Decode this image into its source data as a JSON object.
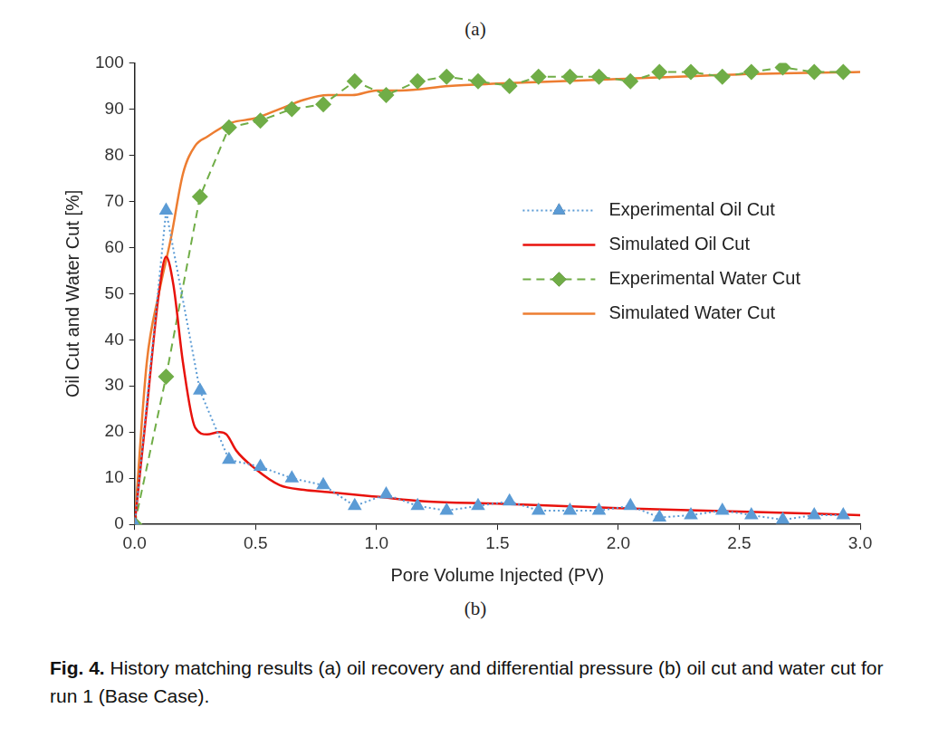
{
  "figure": {
    "panel_top": "(a)",
    "panel_bottom": "(b)",
    "caption_label": "Fig. 4.",
    "caption_text": "History matching results (a) oil recovery and differential pressure (b) oil cut and water cut for run 1 (Base Case)."
  },
  "chart_data": {
    "type": "line",
    "x_label": "Pore Volume Injected (PV)",
    "y_label": "Oil Cut and Water Cut [%]",
    "xlim": [
      0,
      3
    ],
    "xticks": [
      {
        "value": 0,
        "label": "0.0"
      },
      0.5,
      {
        "value": 1,
        "label": "1.0"
      },
      1.5,
      {
        "value": 2,
        "label": "2.0"
      },
      2.5,
      {
        "value": 3,
        "label": "3.0"
      }
    ],
    "ylim": [
      0,
      100
    ],
    "yticks": [
      0,
      10,
      20,
      30,
      40,
      50,
      60,
      70,
      80,
      90,
      100
    ],
    "grid": false,
    "legend": "right",
    "series": [
      {
        "name": "Experimental Oil Cut",
        "color": "#5b9bd5",
        "marker": "triangle",
        "line_style": "dotted",
        "x": [
          0,
          0.13,
          0.27,
          0.39,
          0.52,
          0.65,
          0.78,
          0.91,
          1.04,
          1.17,
          1.29,
          1.42,
          1.55,
          1.67,
          1.8,
          1.92,
          2.05,
          2.17,
          2.3,
          2.43,
          2.55,
          2.68,
          2.81,
          2.93
        ],
        "values": [
          0,
          68,
          29,
          14,
          12.5,
          10,
          8.5,
          4,
          6.5,
          4,
          3,
          4,
          5,
          3,
          3,
          3,
          4,
          1.5,
          2,
          3,
          2,
          1,
          2,
          2
        ]
      },
      {
        "name": "Simulated Oil Cut",
        "color": "#e8120c",
        "marker": "none",
        "line_style": "solid",
        "x": [
          0,
          0.05,
          0.1,
          0.13,
          0.16,
          0.2,
          0.25,
          0.3,
          0.35,
          0.38,
          0.42,
          0.5,
          0.6,
          0.7,
          0.8,
          1.0,
          1.2,
          1.5,
          2.0,
          2.5,
          3.0
        ],
        "values": [
          0,
          25,
          50,
          58,
          52,
          35,
          21,
          19.5,
          20,
          19.5,
          16,
          12,
          8.5,
          7.5,
          7,
          6,
          5,
          4.5,
          3.5,
          2.8,
          2
        ]
      },
      {
        "name": "Experimental Water Cut",
        "color": "#70ad47",
        "marker": "diamond",
        "line_style": "dashed",
        "x": [
          0,
          0.13,
          0.27,
          0.39,
          0.52,
          0.65,
          0.78,
          0.91,
          1.04,
          1.17,
          1.29,
          1.42,
          1.55,
          1.67,
          1.8,
          1.92,
          2.05,
          2.17,
          2.3,
          2.43,
          2.55,
          2.68,
          2.81,
          2.93
        ],
        "values": [
          0,
          32,
          71,
          86,
          87.5,
          90,
          91,
          96,
          93,
          96,
          97,
          96,
          95,
          97,
          97,
          97,
          96,
          98,
          98,
          97,
          98,
          99,
          98,
          98
        ]
      },
      {
        "name": "Simulated Water Cut",
        "color": "#ed7d31",
        "marker": "none",
        "line_style": "solid",
        "x": [
          0,
          0.05,
          0.1,
          0.15,
          0.2,
          0.25,
          0.3,
          0.4,
          0.5,
          0.6,
          0.7,
          0.8,
          0.9,
          1.0,
          1.1,
          1.3,
          1.5,
          2.0,
          2.5,
          3.0
        ],
        "values": [
          0,
          35,
          50,
          62,
          76,
          82,
          84,
          87,
          88,
          90,
          92,
          93,
          93,
          94,
          94,
          95,
          95.5,
          96.5,
          97.5,
          98
        ]
      }
    ]
  }
}
